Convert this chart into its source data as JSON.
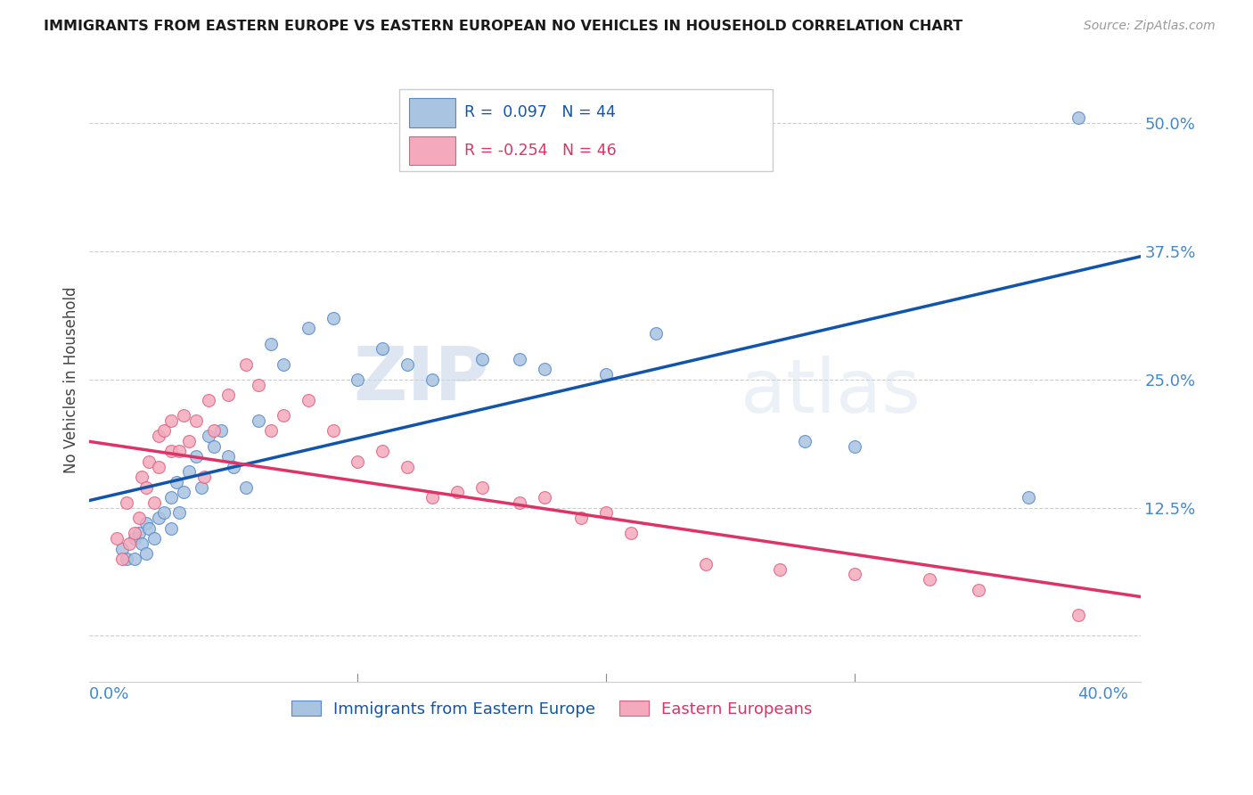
{
  "title": "IMMIGRANTS FROM EASTERN EUROPE VS EASTERN EUROPEAN NO VEHICLES IN HOUSEHOLD CORRELATION CHART",
  "source": "Source: ZipAtlas.com",
  "ylabel_label": "No Vehicles in Household",
  "xlim": [
    -0.008,
    0.415
  ],
  "ylim": [
    -0.045,
    0.545
  ],
  "blue_R": 0.097,
  "blue_N": 44,
  "pink_R": -0.254,
  "pink_N": 46,
  "blue_color": "#A8C4E0",
  "pink_color": "#F4AABC",
  "blue_edge_color": "#5588CC",
  "pink_edge_color": "#E06080",
  "blue_line_color": "#1155AA",
  "pink_line_color": "#DD3366",
  "legend_blue_label": "Immigrants from Eastern Europe",
  "legend_pink_label": "Eastern Europeans",
  "title_color": "#1a1a1a",
  "axis_label_color": "#444444",
  "tick_color": "#4488CC",
  "grid_color": "#CCCCCC",
  "bg_color": "#FFFFFF",
  "blue_x": [
    0.005,
    0.007,
    0.01,
    0.01,
    0.012,
    0.013,
    0.015,
    0.015,
    0.016,
    0.018,
    0.02,
    0.022,
    0.025,
    0.025,
    0.027,
    0.028,
    0.03,
    0.032,
    0.035,
    0.037,
    0.04,
    0.042,
    0.045,
    0.048,
    0.05,
    0.055,
    0.06,
    0.065,
    0.07,
    0.08,
    0.09,
    0.1,
    0.11,
    0.12,
    0.13,
    0.15,
    0.165,
    0.175,
    0.2,
    0.22,
    0.28,
    0.3,
    0.37,
    0.39
  ],
  "blue_y": [
    0.085,
    0.075,
    0.095,
    0.075,
    0.1,
    0.09,
    0.11,
    0.08,
    0.105,
    0.095,
    0.115,
    0.12,
    0.135,
    0.105,
    0.15,
    0.12,
    0.14,
    0.16,
    0.175,
    0.145,
    0.195,
    0.185,
    0.2,
    0.175,
    0.165,
    0.145,
    0.21,
    0.285,
    0.265,
    0.3,
    0.31,
    0.25,
    0.28,
    0.265,
    0.25,
    0.27,
    0.27,
    0.26,
    0.255,
    0.295,
    0.19,
    0.185,
    0.135,
    0.505
  ],
  "pink_x": [
    0.003,
    0.005,
    0.007,
    0.008,
    0.01,
    0.012,
    0.013,
    0.015,
    0.016,
    0.018,
    0.02,
    0.02,
    0.022,
    0.025,
    0.025,
    0.028,
    0.03,
    0.032,
    0.035,
    0.038,
    0.04,
    0.042,
    0.048,
    0.055,
    0.06,
    0.065,
    0.07,
    0.08,
    0.09,
    0.1,
    0.11,
    0.12,
    0.13,
    0.14,
    0.15,
    0.165,
    0.175,
    0.19,
    0.2,
    0.21,
    0.24,
    0.27,
    0.3,
    0.33,
    0.35,
    0.39
  ],
  "pink_y": [
    0.095,
    0.075,
    0.13,
    0.09,
    0.1,
    0.115,
    0.155,
    0.145,
    0.17,
    0.13,
    0.195,
    0.165,
    0.2,
    0.21,
    0.18,
    0.18,
    0.215,
    0.19,
    0.21,
    0.155,
    0.23,
    0.2,
    0.235,
    0.265,
    0.245,
    0.2,
    0.215,
    0.23,
    0.2,
    0.17,
    0.18,
    0.165,
    0.135,
    0.14,
    0.145,
    0.13,
    0.135,
    0.115,
    0.12,
    0.1,
    0.07,
    0.065,
    0.06,
    0.055,
    0.045,
    0.02
  ],
  "x_ticks": [
    0.0,
    0.1,
    0.2,
    0.3,
    0.4
  ],
  "y_ticks": [
    0.0,
    0.125,
    0.25,
    0.375,
    0.5
  ],
  "marker_size": 100
}
